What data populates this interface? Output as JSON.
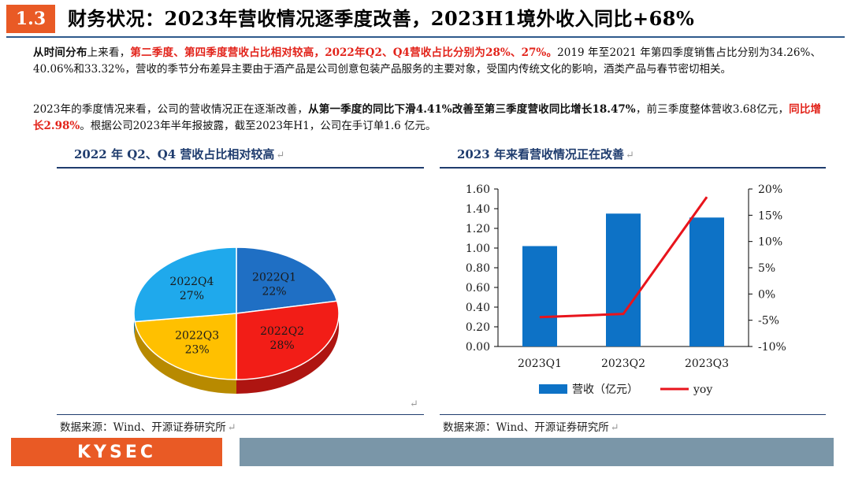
{
  "header": {
    "section_number": "1.3",
    "title": "财务状况：2023年营收情况逐季度改善，2023H1境外收入同比+68%"
  },
  "paragraphs": {
    "p1": {
      "a": "从时间分布",
      "b": "上来看，",
      "c": "第二季度、第四季度营收占比相对较高，2022年Q2、Q4营收占比分别为28%、27%。",
      "d": "2019 年至2021 年第四季度销售占比分别为34.26%、40.06%和33.32%，营收的季节分布差异主要由于酒产品是公司创意包装产品服务的主要对象，受国内传统文化的影响，酒类产品与春节密切相关。"
    },
    "p2": {
      "a": "2023年的季度情况来看，公司的营收情况正在逐渐改善，",
      "b": "从第一季度的同比下滑4.41%改善至第三季度营收同比增长18.47%",
      "c": "，前三季度整体营收3.68亿元，",
      "d": "同比增长2.98%",
      "e": "。根据公司2023年半年报披露，截至2023年H1，公司在手订单1.6 亿元。"
    }
  },
  "charts_text": {
    "left_title": "2022 年 Q2、Q4 营收占比相对较高",
    "right_title": "2023 年来看营收情况正在改善",
    "return_mark": "↵",
    "source_left": "数据来源：Wind、开源证券研究所",
    "source_right": "数据来源：Wind、开源证券研究所"
  },
  "chart_data": [
    {
      "type": "pie",
      "title": "2022 年 Q2、Q4 营收占比相对较高",
      "slices": [
        {
          "label": "2022Q1",
          "value": 22,
          "value_label": "22%",
          "color": "#1f6fc4"
        },
        {
          "label": "2022Q2",
          "value": 28,
          "value_label": "28%",
          "color": "#f21d17"
        },
        {
          "label": "2022Q3",
          "value": 23,
          "value_label": "23%",
          "color": "#ffc000"
        },
        {
          "label": "2022Q4",
          "value": 27,
          "value_label": "27%",
          "color": "#1fa9ec"
        }
      ]
    },
    {
      "type": "bar",
      "title": "2023 年来看营收情况正在改善",
      "categories": [
        "2023Q1",
        "2023Q2",
        "2023Q3"
      ],
      "series": [
        {
          "name": "营收（亿元）",
          "type": "bar",
          "axis": "left",
          "values": [
            1.02,
            1.35,
            1.31
          ],
          "color": "#0d72c6"
        },
        {
          "name": "yoy",
          "type": "line",
          "axis": "right",
          "values": [
            -4.41,
            -3.8,
            18.47
          ],
          "color": "#e8141c"
        }
      ],
      "y_left": {
        "min": 0,
        "max": 1.6,
        "ticks": [
          "0.00",
          "0.20",
          "0.40",
          "0.60",
          "0.80",
          "1.00",
          "1.20",
          "1.40",
          "1.60"
        ]
      },
      "y_right": {
        "min": -10,
        "max": 20,
        "ticks": [
          "-10%",
          "-5%",
          "0%",
          "5%",
          "10%",
          "15%",
          "20%"
        ]
      },
      "legend": "bottom"
    }
  ]
}
